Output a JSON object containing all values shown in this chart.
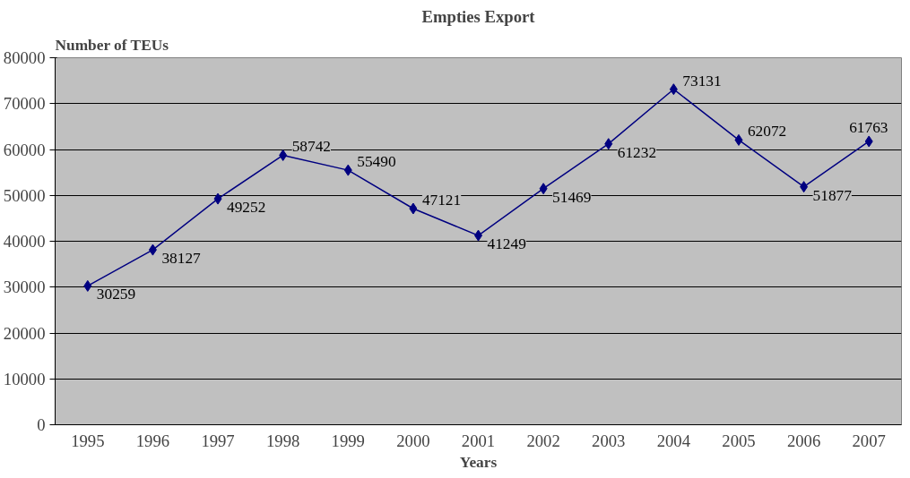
{
  "chart_data": {
    "type": "line",
    "title": "Empties Export",
    "ylabel": "Number of TEUs",
    "xlabel": "Years",
    "categories": [
      "1995",
      "1996",
      "1997",
      "1998",
      "1999",
      "2000",
      "2001",
      "2002",
      "2003",
      "2004",
      "2005",
      "2006",
      "2007"
    ],
    "series": [
      {
        "color": "#000080",
        "values": [
          30259,
          38127,
          49252,
          58742,
          55490,
          47121,
          41249,
          51469,
          61232,
          73131,
          62072,
          51877,
          61763
        ]
      }
    ],
    "ylim": [
      0,
      80000
    ],
    "yticks": [
      0,
      10000,
      20000,
      30000,
      40000,
      50000,
      60000,
      70000,
      80000
    ],
    "grid": "y",
    "marker": "diamond",
    "line_style": "solid",
    "data_labels": true
  }
}
